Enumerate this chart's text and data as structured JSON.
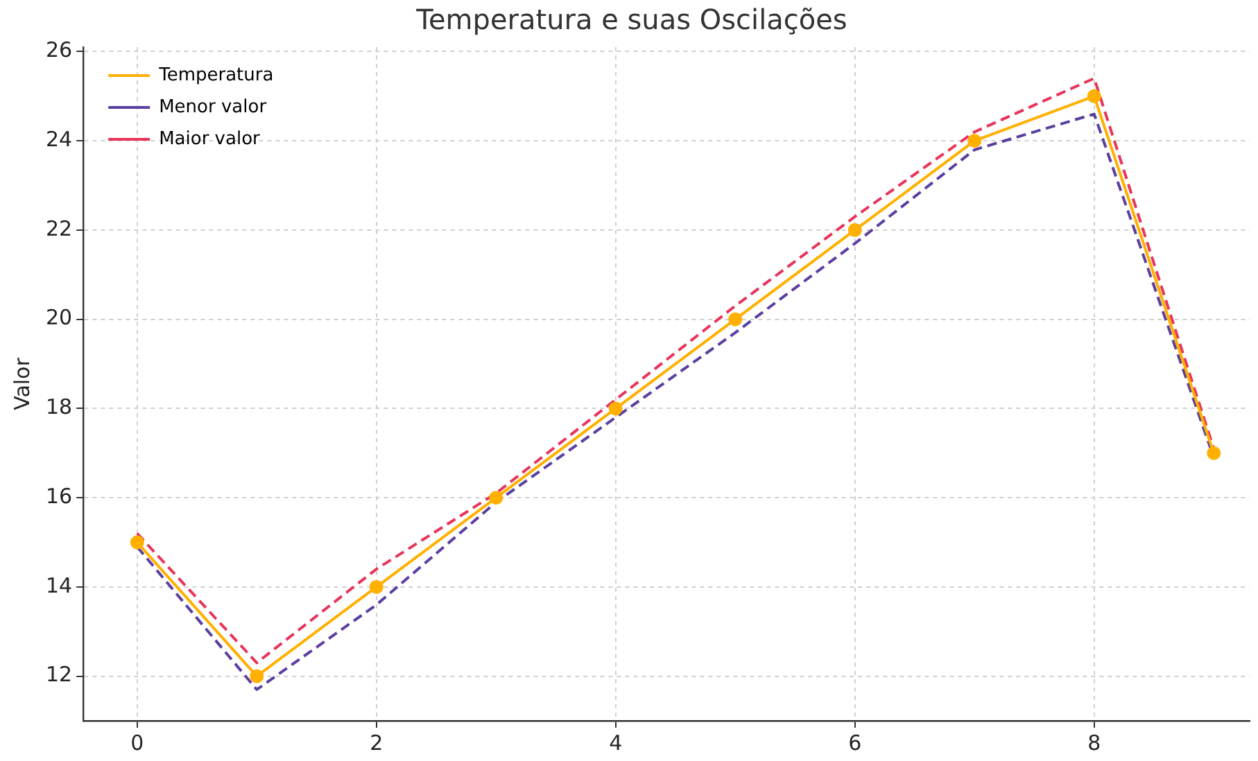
{
  "chart_data": {
    "type": "line",
    "title": "Temperatura e suas Oscilações",
    "ylabel": "Valor",
    "x": [
      0,
      1,
      2,
      3,
      4,
      5,
      6,
      7,
      8,
      9
    ],
    "series": [
      {
        "name": "Temperatura",
        "color": "#ffb000",
        "marker": "circle",
        "line_style": "solid",
        "values": [
          15,
          12,
          14,
          16,
          18,
          20,
          22,
          24,
          25,
          17
        ]
      },
      {
        "name": "Menor valor",
        "color": "#5b3fa0",
        "marker": "none",
        "line_style": "dashed",
        "values": [
          14.9,
          11.7,
          13.6,
          15.9,
          17.8,
          19.7,
          21.7,
          23.8,
          24.6,
          16.9
        ]
      },
      {
        "name": "Maior valor",
        "color": "#e8345a",
        "marker": "none",
        "line_style": "dashed",
        "values": [
          15.2,
          12.3,
          14.4,
          16.1,
          18.2,
          20.3,
          22.3,
          24.2,
          25.4,
          17.1
        ]
      }
    ],
    "xlim": [
      -0.45,
      9.3
    ],
    "xticks": [
      0,
      2,
      4,
      6,
      8
    ],
    "ylim": [
      11,
      26.1
    ],
    "yticks": [
      12,
      14,
      16,
      18,
      20,
      22,
      24,
      26
    ],
    "grid": true,
    "legend": "top left"
  }
}
